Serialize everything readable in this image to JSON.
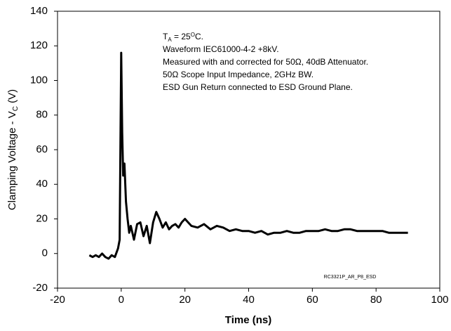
{
  "chart_data": {
    "type": "line",
    "x_label": "Time (ns)",
    "y_label_parts": [
      "Clamping Voltage - V",
      "C",
      " (V)"
    ],
    "annotation_first_parts": [
      "T",
      "A",
      " = 25",
      "O",
      "C."
    ],
    "annotation_lines": [
      "Waveform IEC61000-4-2 +8kV.",
      "Measured with and corrected for 50Ω, 40dB Attenuator.",
      "50Ω Scope Input Impedance, 2GHz BW.",
      "ESD Gun Return connected to ESD Ground Plane."
    ],
    "footnote": "RC3321P_AR_P8_ESD",
    "xlim": [
      -20,
      100
    ],
    "xticks": [
      -20,
      0,
      20,
      40,
      60,
      80,
      100
    ],
    "ylim": [
      -20,
      140
    ],
    "yticks": [
      -20,
      0,
      20,
      40,
      60,
      80,
      100,
      120,
      140
    ],
    "grid": false,
    "series": [
      {
        "color": "#000000",
        "x": [
          -10,
          -9,
          -8,
          -7,
          -6,
          -5,
          -4,
          -3,
          -2,
          -1,
          -0.5,
          0,
          0.3,
          0.6,
          1,
          1.5,
          2,
          2.5,
          3,
          4,
          5,
          6,
          7,
          8,
          9,
          10,
          11,
          12,
          13,
          14,
          15,
          16,
          17,
          18,
          19,
          20,
          22,
          24,
          26,
          28,
          30,
          32,
          34,
          36,
          38,
          40,
          42,
          44,
          46,
          48,
          50,
          52,
          54,
          56,
          58,
          60,
          62,
          64,
          66,
          68,
          70,
          72,
          74,
          76,
          78,
          80,
          82,
          84,
          86,
          88,
          90
        ],
        "values": [
          -1,
          -2,
          -1,
          -2,
          0,
          -2,
          -3,
          -1,
          -2,
          3,
          8,
          116,
          70,
          45,
          52,
          30,
          20,
          12,
          16,
          8,
          17,
          18,
          10,
          16,
          6,
          18,
          24,
          20,
          15,
          18,
          14,
          16,
          17,
          15,
          18,
          20,
          16,
          15,
          17,
          14,
          16,
          15,
          13,
          14,
          13,
          13,
          12,
          13,
          11,
          12,
          12,
          13,
          12,
          12,
          13,
          13,
          13,
          14,
          13,
          13,
          14,
          14,
          13,
          13,
          13,
          13,
          13,
          12,
          12,
          12,
          12
        ]
      }
    ]
  }
}
